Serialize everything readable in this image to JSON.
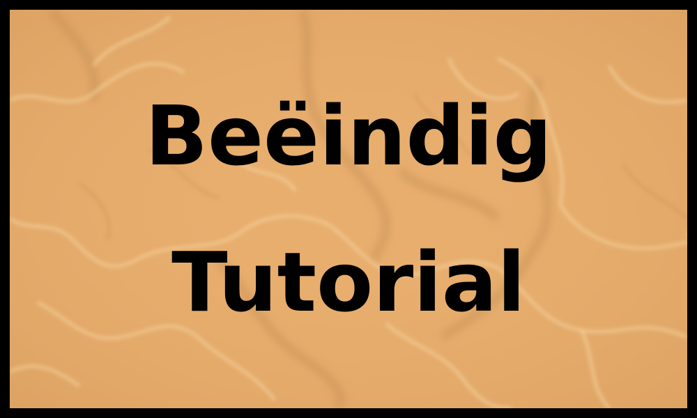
{
  "end_tutorial_button": {
    "line1": "Beëindig",
    "line2": "Tutorial"
  },
  "colors": {
    "frame": "#000000",
    "button_fill": "#e8ae6e",
    "vein_light": "#f4cf96",
    "vein_dark": "#c08a4e",
    "text": "#000000"
  }
}
